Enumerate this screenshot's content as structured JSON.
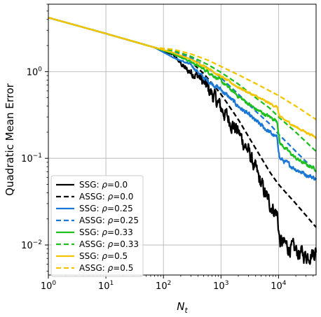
{
  "chart_data": {
    "type": "line",
    "xscale": "log",
    "yscale": "log",
    "xlim": [
      1,
      45000
    ],
    "ylim": [
      0.0045,
      6
    ],
    "xlabel_main": "N",
    "xlabel_sub": "t",
    "ylabel": "Quadratic Mean Error",
    "grid": true,
    "legend_position": "lower-left",
    "x_ticks": [
      {
        "base": "10",
        "exp": "0",
        "value": 1
      },
      {
        "base": "10",
        "exp": "1",
        "value": 10
      },
      {
        "base": "10",
        "exp": "2",
        "value": 100
      },
      {
        "base": "10",
        "exp": "3",
        "value": 1000
      },
      {
        "base": "10",
        "exp": "4",
        "value": 10000
      }
    ],
    "y_ticks": [
      {
        "base": "10",
        "exp": "−2",
        "value": 0.01
      },
      {
        "base": "10",
        "exp": "−1",
        "value": 0.1
      },
      {
        "base": "10",
        "exp": "0",
        "value": 1
      }
    ],
    "series": [
      {
        "name_prefix": "SSG: ",
        "name_rho": "ρ",
        "name_suffix": "=0.0",
        "color": "#000000",
        "dash": false,
        "noise": 0.14,
        "x": [
          1,
          10,
          70,
          150,
          250,
          400,
          700,
          1000,
          2000,
          3000,
          5000,
          7000,
          9500,
          10500,
          15000,
          20000,
          30000,
          45000
        ],
        "y": [
          4.2,
          2.75,
          1.9,
          1.55,
          1.05,
          0.9,
          0.55,
          0.38,
          0.2,
          0.12,
          0.05,
          0.03,
          0.023,
          0.011,
          0.0095,
          0.0085,
          0.0075,
          0.0085
        ]
      },
      {
        "name_prefix": "ASSG: ",
        "name_rho": "ρ",
        "name_suffix": "=0.0",
        "color": "#000000",
        "dash": true,
        "noise": 0,
        "x": [
          1,
          10,
          70,
          150,
          300,
          500,
          1000,
          2000,
          4000,
          7000,
          10000,
          20000,
          45000
        ],
        "y": [
          4.2,
          2.75,
          1.9,
          1.65,
          1.3,
          0.95,
          0.55,
          0.28,
          0.13,
          0.07,
          0.05,
          0.03,
          0.016
        ]
      },
      {
        "name_prefix": "SSG: ",
        "name_rho": "ρ",
        "name_suffix": "=0.25",
        "color": "#1a78d4",
        "dash": false,
        "noise": 0.04,
        "x": [
          1,
          10,
          70,
          150,
          300,
          500,
          1000,
          2000,
          4000,
          7000,
          9500,
          10500,
          15000,
          20000,
          30000,
          45000
        ],
        "y": [
          4.2,
          2.75,
          1.9,
          1.45,
          1.2,
          0.85,
          0.62,
          0.4,
          0.27,
          0.2,
          0.17,
          0.1,
          0.085,
          0.075,
          0.065,
          0.058
        ]
      },
      {
        "name_prefix": "ASSG: ",
        "name_rho": "ρ",
        "name_suffix": "=0.25",
        "color": "#1a78d4",
        "dash": true,
        "noise": 0,
        "x": [
          1,
          10,
          70,
          150,
          300,
          600,
          1000,
          2000,
          4000,
          7000,
          10000,
          20000,
          45000
        ],
        "y": [
          4.2,
          2.75,
          1.9,
          1.7,
          1.45,
          1.1,
          0.85,
          0.55,
          0.35,
          0.25,
          0.19,
          0.12,
          0.07
        ]
      },
      {
        "name_prefix": "SSG: ",
        "name_rho": "ρ",
        "name_suffix": "=0.33",
        "color": "#1fbf1f",
        "dash": false,
        "noise": 0.03,
        "x": [
          1,
          10,
          70,
          150,
          300,
          600,
          1000,
          2000,
          4000,
          7000,
          9500,
          10500,
          15000,
          20000,
          30000,
          45000
        ],
        "y": [
          4.2,
          2.75,
          1.9,
          1.6,
          1.3,
          1.0,
          0.78,
          0.52,
          0.37,
          0.3,
          0.27,
          0.15,
          0.12,
          0.1,
          0.085,
          0.075
        ]
      },
      {
        "name_prefix": "ASSG: ",
        "name_rho": "ρ",
        "name_suffix": "=0.33",
        "color": "#1fbf1f",
        "dash": true,
        "noise": 0,
        "x": [
          1,
          10,
          70,
          150,
          300,
          600,
          1000,
          2000,
          4000,
          7000,
          10000,
          20000,
          45000
        ],
        "y": [
          4.2,
          2.75,
          1.9,
          1.75,
          1.5,
          1.2,
          0.98,
          0.72,
          0.5,
          0.38,
          0.3,
          0.2,
          0.12
        ]
      },
      {
        "name_prefix": "SSG: ",
        "name_rho": "ρ",
        "name_suffix": "=0.5",
        "color": "#f5c400",
        "dash": false,
        "noise": 0.02,
        "x": [
          1,
          10,
          70,
          150,
          300,
          600,
          1000,
          2000,
          4000,
          7000,
          9500,
          10500,
          15000,
          20000,
          30000,
          45000
        ],
        "y": [
          4.2,
          2.75,
          1.9,
          1.65,
          1.38,
          1.1,
          0.88,
          0.66,
          0.52,
          0.43,
          0.39,
          0.3,
          0.26,
          0.23,
          0.2,
          0.175
        ]
      },
      {
        "name_prefix": "ASSG: ",
        "name_rho": "ρ",
        "name_suffix": "=0.5",
        "color": "#f5c400",
        "dash": true,
        "noise": 0,
        "x": [
          1,
          10,
          70,
          150,
          300,
          600,
          1000,
          2000,
          4000,
          7000,
          10000,
          20000,
          45000
        ],
        "y": [
          4.2,
          2.75,
          1.9,
          1.8,
          1.6,
          1.35,
          1.15,
          0.92,
          0.73,
          0.6,
          0.53,
          0.4,
          0.28
        ]
      }
    ]
  }
}
